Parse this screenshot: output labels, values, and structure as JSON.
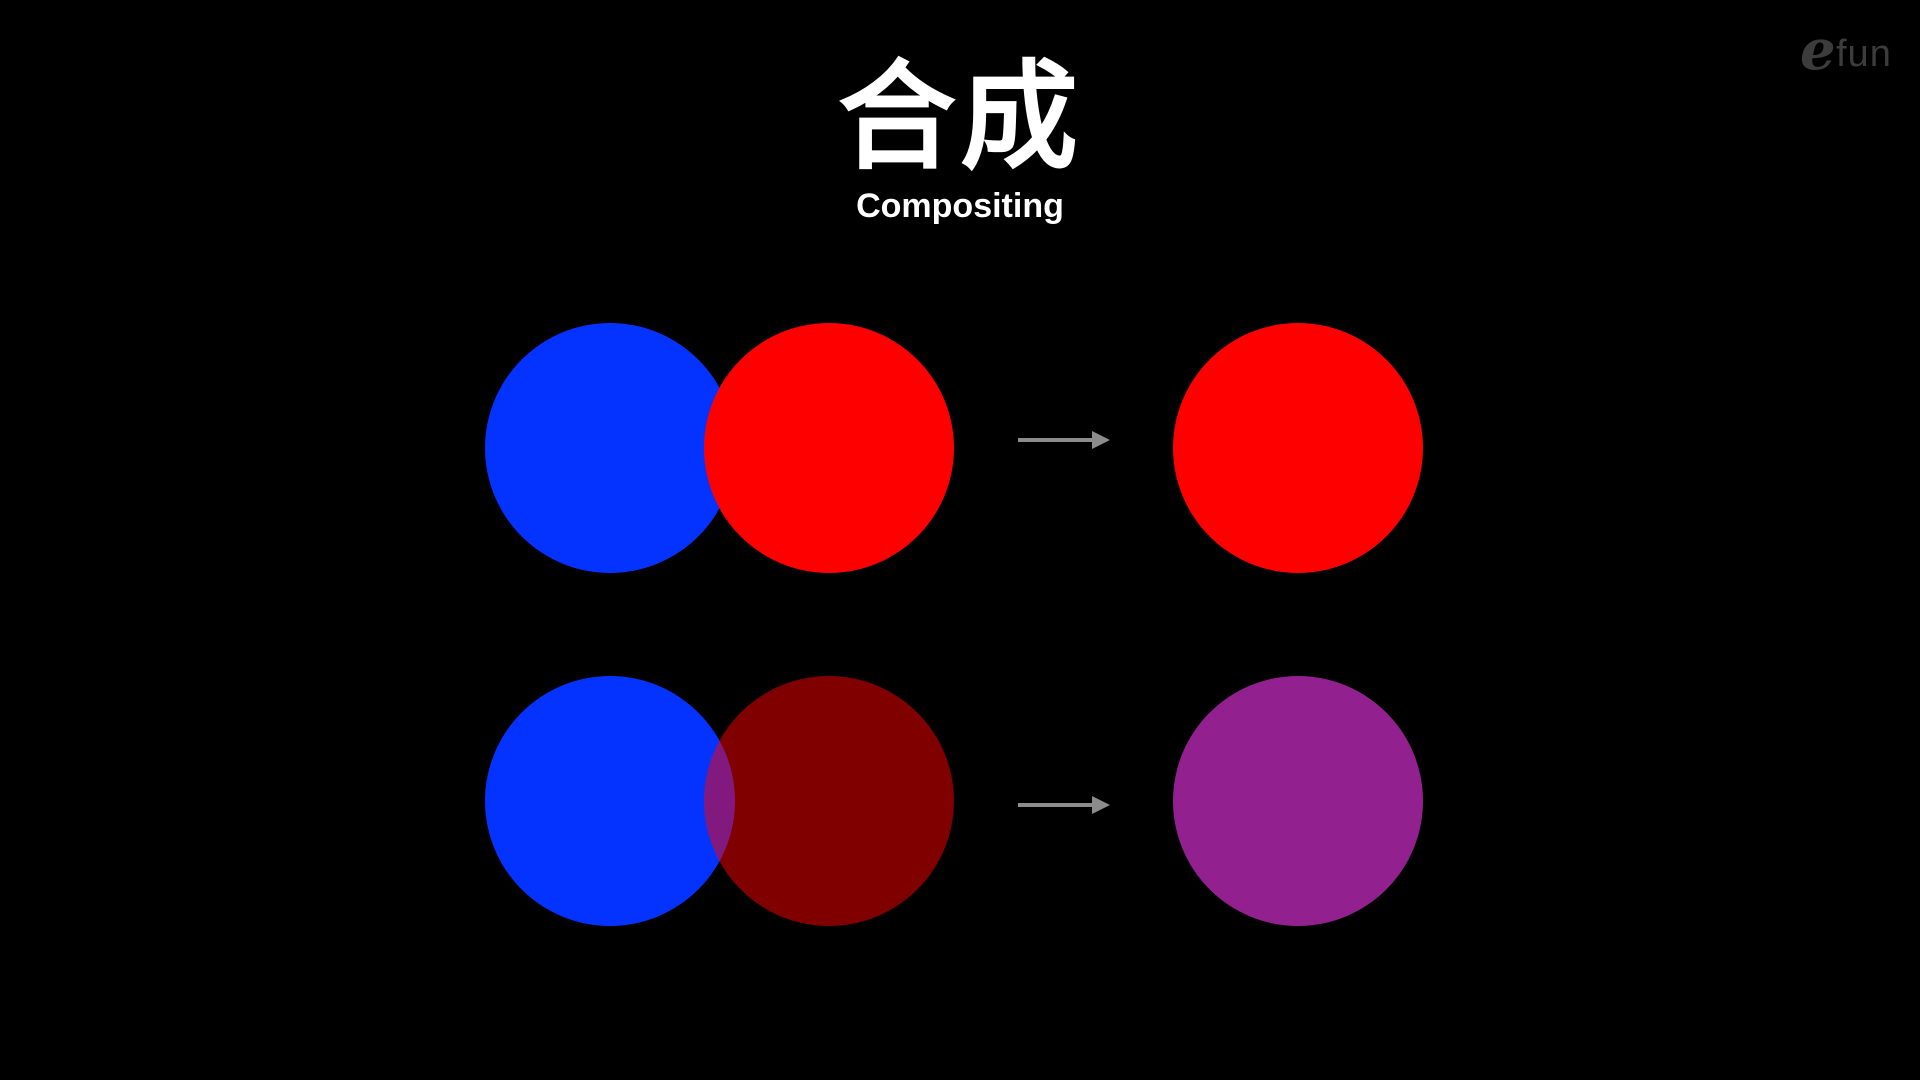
{
  "header": {
    "title": "合成",
    "subtitle": "Compositing"
  },
  "logo": {
    "text_e": "e",
    "text_fun": "fun"
  },
  "colors": {
    "background": "#000000",
    "blue": "#0433ff",
    "red": "#ff0000",
    "translucent_red": "#ff0000",
    "result_purple": "#93208f",
    "arrow": "#8c8c8c"
  },
  "rows": [
    {
      "source": {
        "back_circle": "blue",
        "front_circle": "red",
        "front_opacity": 1.0
      },
      "result": "red"
    },
    {
      "source": {
        "back_circle": "blue",
        "front_circle": "red",
        "front_opacity": 0.5
      },
      "result": "purple"
    }
  ]
}
